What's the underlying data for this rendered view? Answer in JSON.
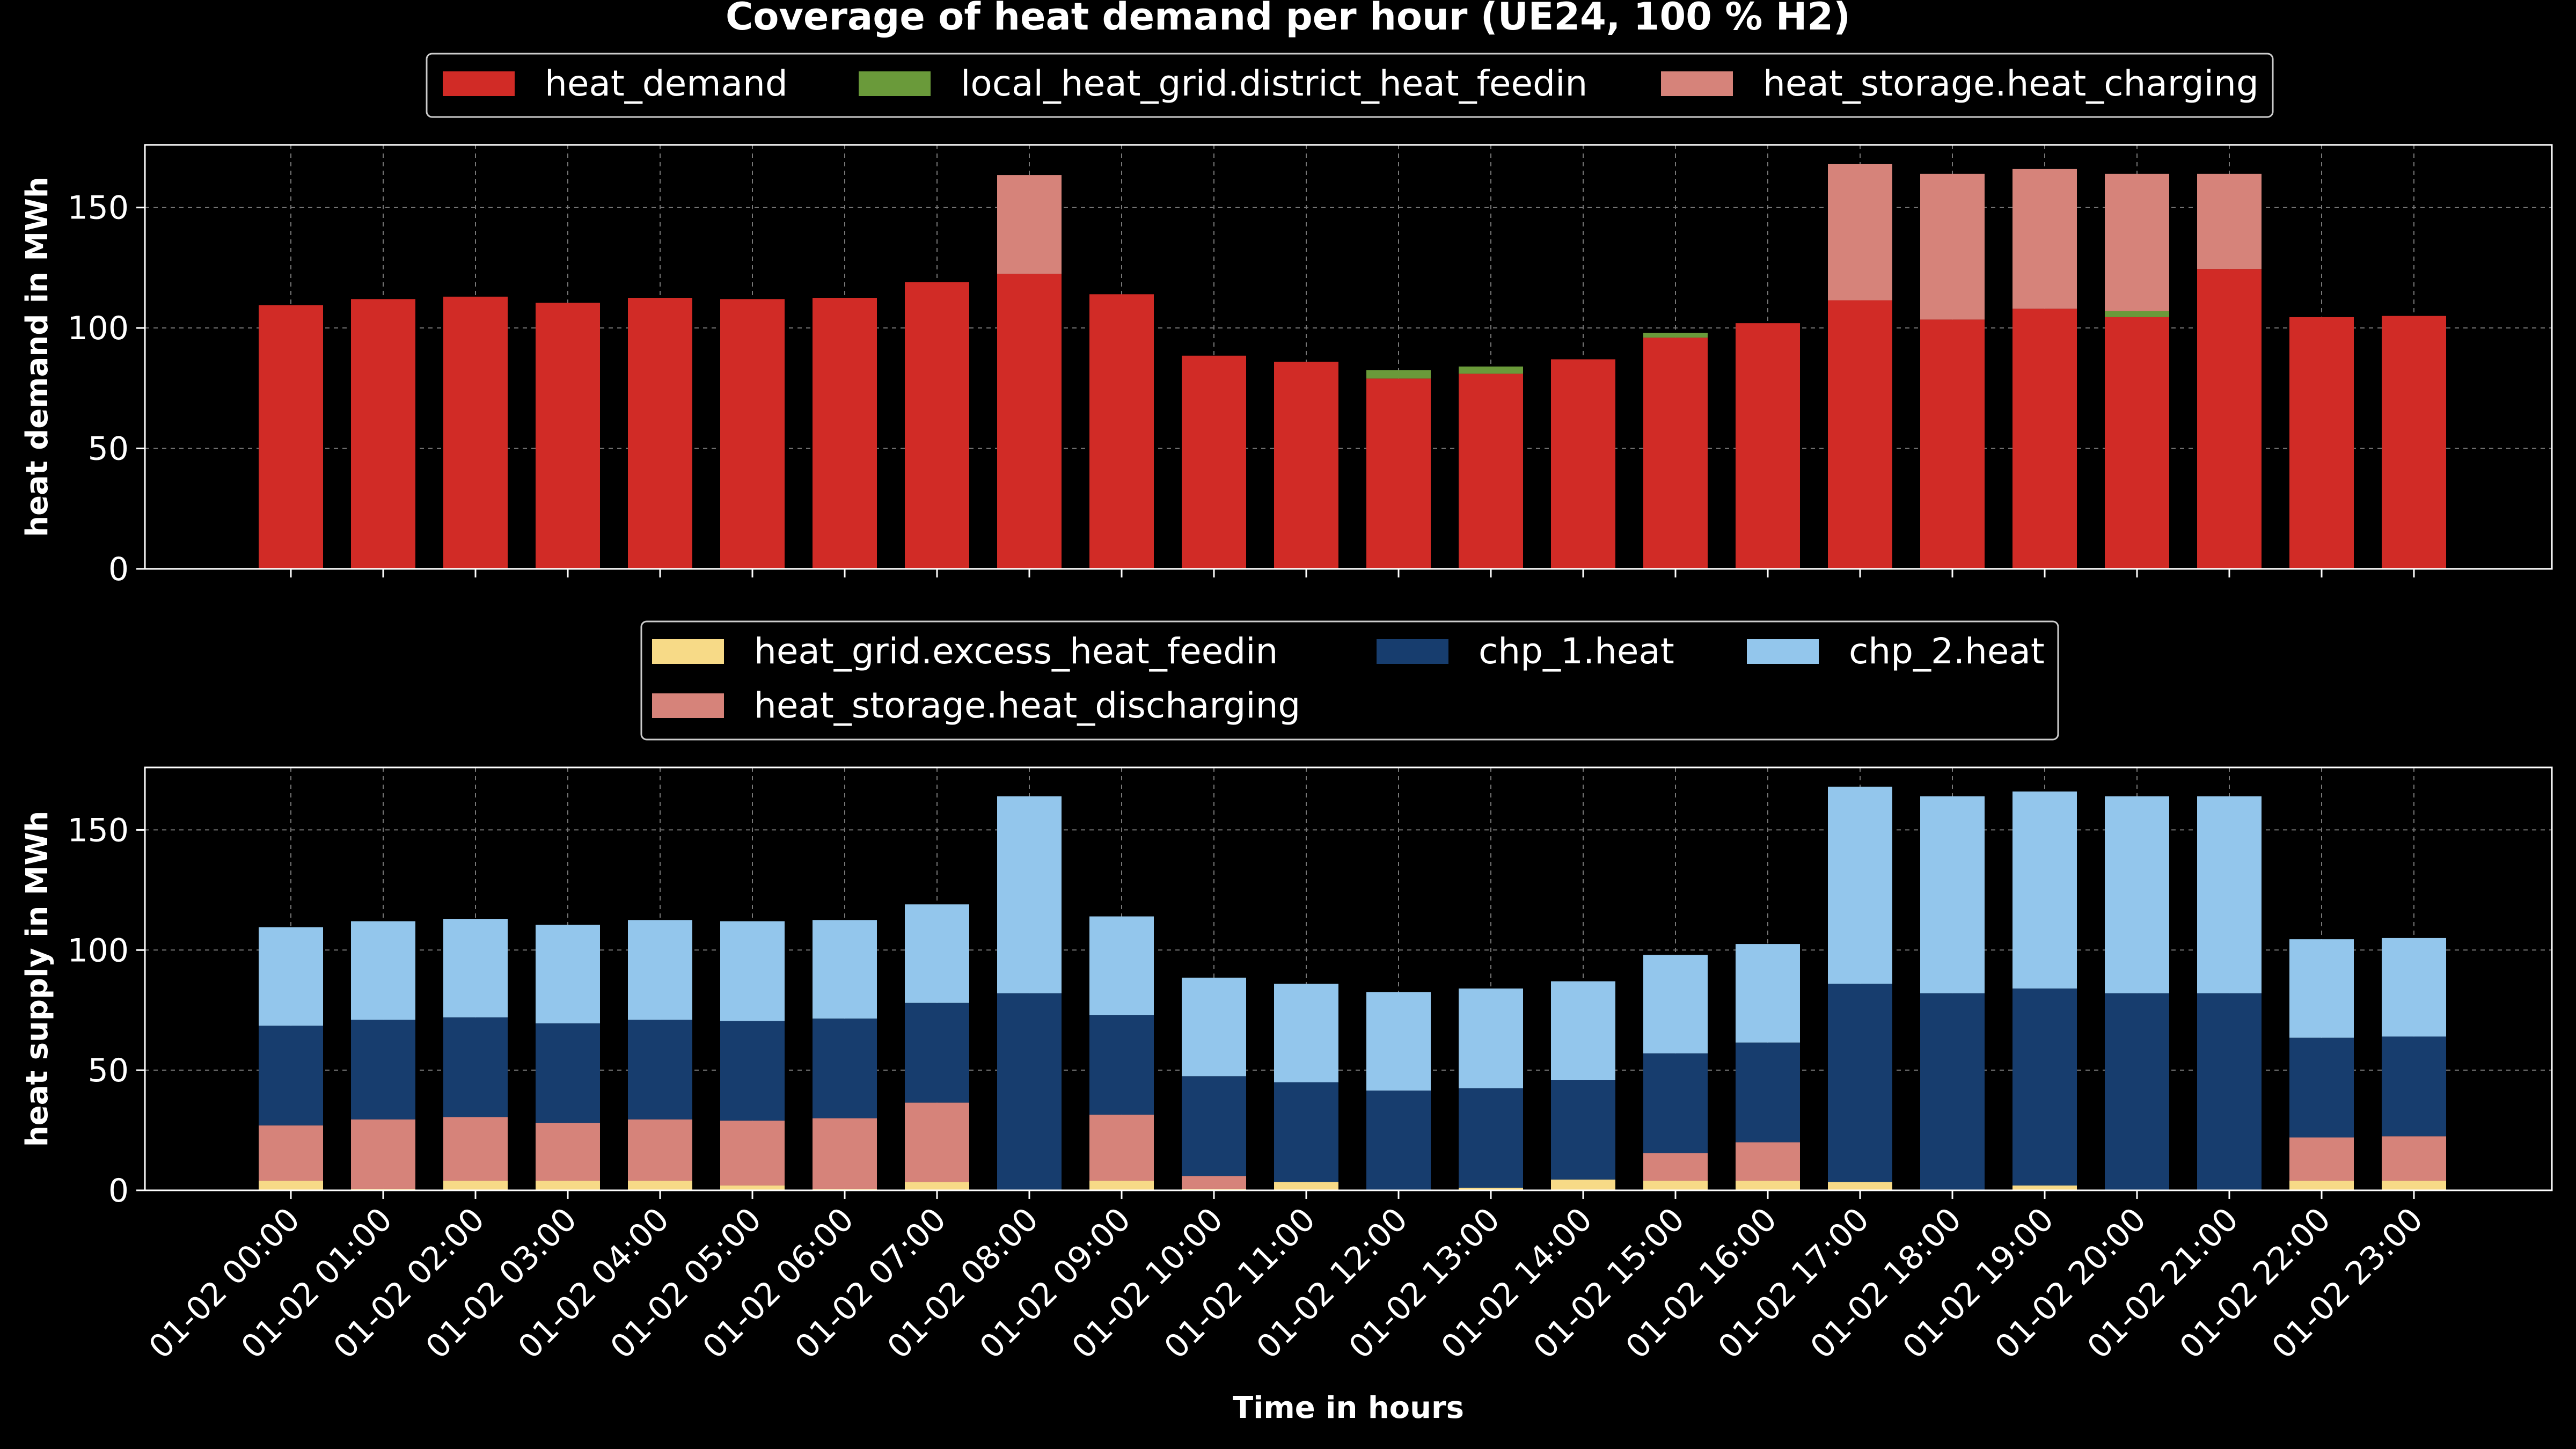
{
  "title": "Coverage of heat demand per hour (UE24, 100 % H2)",
  "colors": {
    "background": "#000000",
    "heat_demand": "#d12b26",
    "district_heat_feedin": "#6a9a3a",
    "heat_storage": "#d6837a",
    "excess_heat_feedin": "#f7da87",
    "chp_1": "#173d6e",
    "chp_2": "#93c6ec"
  },
  "chart_data": [
    {
      "type": "bar",
      "stacked": true,
      "ylabel": "heat demand in MWh",
      "xlabel": "",
      "ylim": [
        0,
        176
      ],
      "yticks": [
        0,
        50,
        100,
        150
      ],
      "grid": true,
      "legend_placement": "top-center",
      "categories": [
        "01-02 00:00",
        "01-02 01:00",
        "01-02 02:00",
        "01-02 03:00",
        "01-02 04:00",
        "01-02 05:00",
        "01-02 06:00",
        "01-02 07:00",
        "01-02 08:00",
        "01-02 09:00",
        "01-02 10:00",
        "01-02 11:00",
        "01-02 12:00",
        "01-02 13:00",
        "01-02 14:00",
        "01-02 15:00",
        "01-02 16:00",
        "01-02 17:00",
        "01-02 18:00",
        "01-02 19:00",
        "01-02 20:00",
        "01-02 21:00",
        "01-02 22:00",
        "01-02 23:00"
      ],
      "series": [
        {
          "name": "heat_demand",
          "color": "#d12b26",
          "values": [
            109.5,
            112,
            113,
            110.5,
            112.5,
            112,
            112.5,
            119,
            122.5,
            114,
            88.5,
            86,
            79,
            81,
            87,
            96,
            102,
            111.5,
            103.5,
            108,
            104.5,
            124.5,
            104.5,
            105
          ]
        },
        {
          "name": "local_heat_grid.district_heat_feedin",
          "color": "#6a9a3a",
          "values": [
            0,
            0,
            0,
            0,
            0,
            0,
            0,
            0,
            0,
            0,
            0,
            0,
            3.5,
            3,
            0,
            2,
            0,
            0,
            0,
            0,
            2.5,
            0,
            0,
            0
          ]
        },
        {
          "name": "heat_storage.heat_charging",
          "color": "#d6837a",
          "values": [
            0,
            0,
            0,
            0,
            0,
            0,
            0,
            0,
            41,
            0,
            0,
            0,
            0,
            0,
            0,
            0,
            0,
            56.5,
            60.5,
            58,
            57,
            39.5,
            0,
            0
          ]
        }
      ]
    },
    {
      "type": "bar",
      "stacked": true,
      "ylabel": "heat supply in MWh",
      "xlabel": "Time in hours",
      "ylim": [
        0,
        176
      ],
      "yticks": [
        0,
        50,
        100,
        150
      ],
      "grid": true,
      "legend_placement": "top-center",
      "categories": [
        "01-02 00:00",
        "01-02 01:00",
        "01-02 02:00",
        "01-02 03:00",
        "01-02 04:00",
        "01-02 05:00",
        "01-02 06:00",
        "01-02 07:00",
        "01-02 08:00",
        "01-02 09:00",
        "01-02 10:00",
        "01-02 11:00",
        "01-02 12:00",
        "01-02 13:00",
        "01-02 14:00",
        "01-02 15:00",
        "01-02 16:00",
        "01-02 17:00",
        "01-02 18:00",
        "01-02 19:00",
        "01-02 20:00",
        "01-02 21:00",
        "01-02 22:00",
        "01-02 23:00"
      ],
      "series": [
        {
          "name": "heat_grid.excess_heat_feedin",
          "color": "#f7da87",
          "values": [
            4,
            0.5,
            4,
            4,
            4,
            2,
            0.5,
            3.5,
            0,
            4,
            0.5,
            3.5,
            0,
            1,
            4.5,
            4,
            4,
            3.5,
            0,
            2,
            0,
            0,
            4,
            4
          ]
        },
        {
          "name": "heat_storage.heat_discharging",
          "color": "#d6837a",
          "values": [
            23,
            29,
            26.5,
            24,
            25.5,
            27,
            29.5,
            33,
            0,
            27.5,
            5.5,
            0,
            0,
            0,
            0,
            11.5,
            16,
            0,
            0,
            0,
            0,
            0,
            18,
            18.5
          ]
        },
        {
          "name": "chp_1.heat",
          "color": "#173d6e",
          "values": [
            41.5,
            41.5,
            41.5,
            41.5,
            41.5,
            41.5,
            41.5,
            41.5,
            82,
            41.5,
            41.5,
            41.5,
            41.5,
            41.5,
            41.5,
            41.5,
            41.5,
            82.5,
            82,
            82,
            82,
            82,
            41.5,
            41.5
          ]
        },
        {
          "name": "chp_2.heat",
          "color": "#93c6ec",
          "values": [
            41,
            41,
            41,
            41,
            41.5,
            41.5,
            41,
            41,
            82,
            41,
            41,
            41,
            41,
            41.5,
            41,
            41,
            41,
            82,
            82,
            82,
            82,
            82,
            41,
            41
          ]
        }
      ]
    }
  ]
}
